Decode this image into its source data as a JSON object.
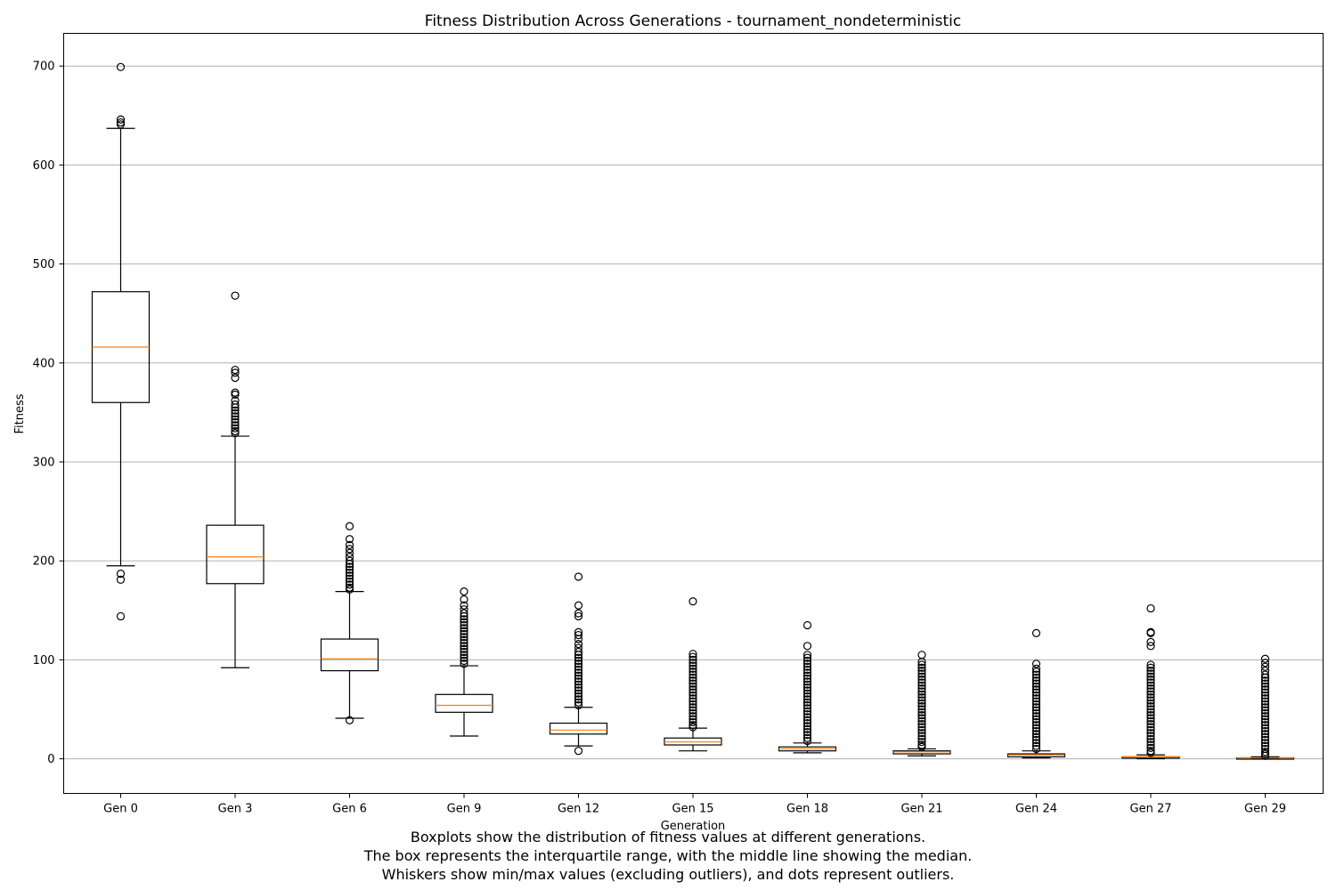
{
  "chart_data": {
    "type": "boxplot",
    "title": "Fitness Distribution Across Generations - tournament_nondeterministic",
    "xlabel": "Generation",
    "ylabel": "Fitness",
    "ylim": [
      -35,
      733
    ],
    "yticks": [
      0,
      100,
      200,
      300,
      400,
      500,
      600,
      700
    ],
    "grid": "y",
    "colors": {
      "box": "#000000",
      "median": "#ff7f0e",
      "grid": "#b0b0b0"
    },
    "categories": [
      "Gen 0",
      "Gen 3",
      "Gen 6",
      "Gen 9",
      "Gen 12",
      "Gen 15",
      "Gen 18",
      "Gen 21",
      "Gen 24",
      "Gen 27",
      "Gen 29"
    ],
    "boxes": [
      {
        "label": "Gen 0",
        "whislo": 195,
        "q1": 360,
        "med": 416,
        "q3": 472,
        "whishi": 637,
        "fliers": [
          699,
          646,
          643,
          641,
          187,
          181,
          144
        ]
      },
      {
        "label": "Gen 3",
        "whislo": 92,
        "q1": 177,
        "med": 204,
        "q3": 236,
        "whishi": 326,
        "fliers": [
          468,
          393,
          390,
          385,
          370,
          368,
          362,
          358,
          355,
          352,
          349,
          346,
          343,
          340,
          337,
          334,
          331,
          329
        ]
      },
      {
        "label": "Gen 6",
        "whislo": 41,
        "q1": 89,
        "med": 101,
        "q3": 121,
        "whishi": 169,
        "fliers": [
          235,
          222,
          216,
          212,
          208,
          204,
          200,
          197,
          194,
          191,
          188,
          185,
          182,
          179,
          176,
          173,
          171,
          39
        ]
      },
      {
        "label": "Gen 9",
        "whislo": 23,
        "q1": 47,
        "med": 54,
        "q3": 65,
        "whishi": 94,
        "fliers": [
          169,
          161,
          155,
          151,
          147,
          144,
          141,
          138,
          135,
          132,
          129,
          126,
          123,
          120,
          117,
          114,
          111,
          108,
          105,
          102,
          99,
          96
        ]
      },
      {
        "label": "Gen 12",
        "whislo": 13,
        "q1": 25,
        "med": 29,
        "q3": 36,
        "whishi": 52,
        "fliers": [
          184,
          155,
          147,
          144,
          128,
          125,
          121,
          116,
          112,
          108,
          105,
          102,
          99,
          96,
          93,
          90,
          87,
          84,
          81,
          78,
          75,
          72,
          69,
          66,
          63,
          60,
          57,
          54,
          8
        ]
      },
      {
        "label": "Gen 15",
        "whislo": 8,
        "q1": 14,
        "med": 17,
        "q3": 21,
        "whishi": 31,
        "fliers": [
          159,
          106,
          103,
          100,
          97,
          94,
          91,
          88,
          85,
          82,
          79,
          76,
          73,
          70,
          67,
          64,
          61,
          58,
          55,
          52,
          49,
          46,
          43,
          40,
          37,
          34,
          32
        ]
      },
      {
        "label": "Gen 18",
        "whislo": 6,
        "q1": 8,
        "med": 10,
        "q3": 12,
        "whishi": 16,
        "fliers": [
          135,
          114,
          105,
          102,
          99,
          96,
          93,
          90,
          87,
          84,
          81,
          78,
          75,
          72,
          69,
          66,
          63,
          60,
          57,
          54,
          51,
          48,
          45,
          42,
          39,
          36,
          33,
          30,
          27,
          24,
          21,
          18
        ]
      },
      {
        "label": "Gen 21",
        "whislo": 3,
        "q1": 5,
        "med": 7,
        "q3": 8,
        "whishi": 10,
        "fliers": [
          105,
          98,
          95,
          92,
          89,
          86,
          83,
          80,
          77,
          74,
          71,
          68,
          65,
          62,
          59,
          56,
          53,
          50,
          47,
          44,
          41,
          38,
          35,
          32,
          29,
          26,
          23,
          20,
          17,
          14,
          12
        ]
      },
      {
        "label": "Gen 24",
        "whislo": 1,
        "q1": 2,
        "med": 4,
        "q3": 5,
        "whishi": 8,
        "fliers": [
          127,
          96,
          91,
          88,
          85,
          82,
          79,
          76,
          73,
          70,
          67,
          64,
          61,
          58,
          55,
          52,
          49,
          46,
          43,
          40,
          37,
          34,
          31,
          28,
          25,
          22,
          19,
          16,
          13,
          10
        ]
      },
      {
        "label": "Gen 27",
        "whislo": 0,
        "q1": 1,
        "med": 2,
        "q3": 2,
        "whishi": 4,
        "fliers": [
          152,
          128,
          127,
          118,
          114,
          95,
          92,
          89,
          86,
          83,
          80,
          77,
          74,
          71,
          68,
          65,
          62,
          59,
          56,
          53,
          50,
          47,
          44,
          41,
          38,
          35,
          32,
          29,
          26,
          23,
          20,
          17,
          14,
          11,
          8,
          6
        ]
      },
      {
        "label": "Gen 29",
        "whislo": 0,
        "q1": 0,
        "med": 1,
        "q3": 1,
        "whishi": 2,
        "fliers": [
          101,
          97,
          93,
          89,
          85,
          82,
          79,
          76,
          73,
          70,
          67,
          64,
          61,
          58,
          55,
          52,
          49,
          46,
          43,
          40,
          37,
          34,
          31,
          28,
          25,
          22,
          19,
          16,
          13,
          10,
          7,
          5,
          3
        ]
      }
    ]
  },
  "caption": {
    "lines": [
      "Boxplots show the distribution of fitness values at different generations.",
      "The box represents the interquartile range, with the middle line showing the median.",
      "Whiskers show min/max values (excluding outliers), and dots represent outliers."
    ]
  }
}
